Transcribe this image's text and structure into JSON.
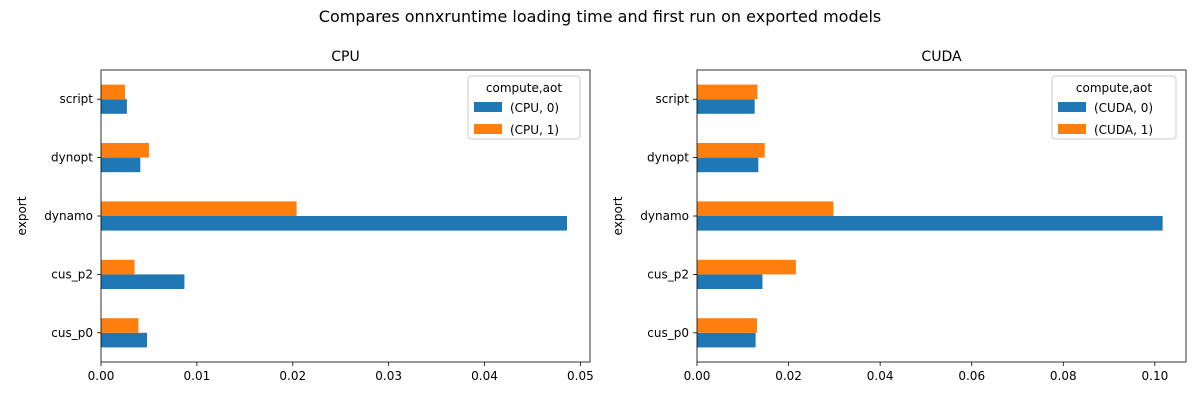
{
  "figure": {
    "suptitle": "Compares onnxruntime loading time and first run on exported models"
  },
  "chart_data": [
    {
      "type": "bar",
      "orientation": "horizontal",
      "title": "CPU",
      "xlabel": "",
      "ylabel": "export",
      "categories": [
        "cus_p0",
        "cus_p2",
        "dynamo",
        "dynopt",
        "script"
      ],
      "xlim": [
        0,
        0.051
      ],
      "xticks": [
        0.0,
        0.01,
        0.02,
        0.03,
        0.04,
        0.05
      ],
      "xtick_labels": [
        "0.00",
        "0.01",
        "0.02",
        "0.03",
        "0.04",
        "0.05"
      ],
      "legend": {
        "title": "compute,aot",
        "placement": "top-right"
      },
      "series": [
        {
          "name": "(CPU, 0)",
          "color": "#1f77b4",
          "values": [
            0.0048,
            0.0087,
            0.0486,
            0.0041,
            0.0027
          ]
        },
        {
          "name": "(CPU, 1)",
          "color": "#ff7f0e",
          "values": [
            0.0039,
            0.0035,
            0.0204,
            0.005,
            0.0025
          ]
        }
      ]
    },
    {
      "type": "bar",
      "orientation": "horizontal",
      "title": "CUDA",
      "xlabel": "",
      "ylabel": "export",
      "categories": [
        "cus_p0",
        "cus_p2",
        "dynamo",
        "dynopt",
        "script"
      ],
      "xlim": [
        0,
        0.1068
      ],
      "xticks": [
        0.0,
        0.02,
        0.04,
        0.06,
        0.08,
        0.1
      ],
      "xtick_labels": [
        "0.00",
        "0.02",
        "0.04",
        "0.06",
        "0.08",
        "0.10"
      ],
      "legend": {
        "title": "compute,aot",
        "placement": "top-right"
      },
      "series": [
        {
          "name": "(CUDA, 0)",
          "color": "#1f77b4",
          "values": [
            0.0128,
            0.0143,
            0.1017,
            0.0134,
            0.0126
          ]
        },
        {
          "name": "(CUDA, 1)",
          "color": "#ff7f0e",
          "values": [
            0.0131,
            0.0216,
            0.0298,
            0.0148,
            0.0132
          ]
        }
      ]
    }
  ]
}
